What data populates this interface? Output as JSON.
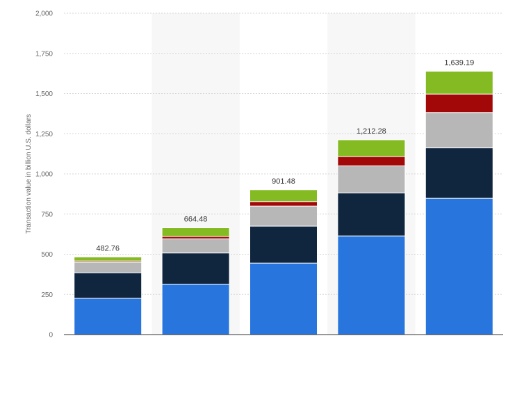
{
  "chart_data": {
    "type": "bar",
    "stacked": true,
    "title": "",
    "xlabel": "",
    "ylabel": "Transaction value in billion U.S. dollars",
    "ylim": [
      0,
      2000
    ],
    "yticks": [
      0,
      250,
      500,
      750,
      1000,
      1250,
      1500,
      1750,
      2000
    ],
    "ytick_labels": [
      "0",
      "250",
      "500",
      "750",
      "1,000",
      "1,250",
      "1,500",
      "1,750",
      "2,000"
    ],
    "categories": [
      "",
      "",
      "",
      "",
      ""
    ],
    "series": [
      {
        "color": "#2876dd",
        "values": [
          226,
          314,
          445,
          614,
          848
        ]
      },
      {
        "color": "#10263f",
        "values": [
          159,
          194,
          230,
          268,
          314
        ]
      },
      {
        "color": "#b7b7b7",
        "values": [
          65,
          88,
          125,
          168,
          220
        ]
      },
      {
        "color": "#a30808",
        "values": [
          8,
          15,
          28,
          58,
          115
        ]
      },
      {
        "color": "#84bb22",
        "values": [
          24.76,
          53.48,
          73.48,
          104.28,
          142.19
        ]
      }
    ],
    "totals": [
      "482.76",
      "664.48",
      "901.48",
      "1,212.28",
      "1,639.19"
    ],
    "grid": true,
    "legend": "none"
  }
}
